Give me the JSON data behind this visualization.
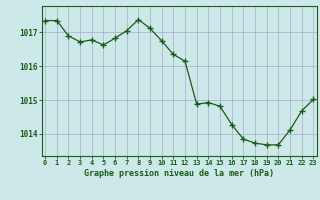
{
  "x": [
    0,
    1,
    2,
    3,
    4,
    5,
    6,
    7,
    8,
    9,
    10,
    11,
    12,
    13,
    14,
    15,
    16,
    17,
    18,
    19,
    20,
    21,
    22,
    23
  ],
  "y": [
    1017.35,
    1017.35,
    1016.9,
    1016.72,
    1016.78,
    1016.63,
    1016.83,
    1017.05,
    1017.38,
    1017.12,
    1016.75,
    1016.35,
    1016.15,
    1014.88,
    1014.93,
    1014.82,
    1014.28,
    1013.85,
    1013.73,
    1013.68,
    1013.68,
    1014.12,
    1014.68,
    1015.02
  ],
  "line_color": "#1a5c1a",
  "marker_color": "#1a5c1a",
  "bg_color": "#cce8e8",
  "grid_color": "#aaaacc",
  "xlabel": "Graphe pression niveau de la mer (hPa)",
  "xlabel_color": "#1a5c1a",
  "tick_color": "#1a5c1a",
  "ylim_min": 1013.35,
  "ylim_max": 1017.78,
  "yticks": [
    1014,
    1015,
    1016,
    1017
  ],
  "xticks": [
    0,
    1,
    2,
    3,
    4,
    5,
    6,
    7,
    8,
    9,
    10,
    11,
    12,
    13,
    14,
    15,
    16,
    17,
    18,
    19,
    20,
    21,
    22,
    23
  ]
}
